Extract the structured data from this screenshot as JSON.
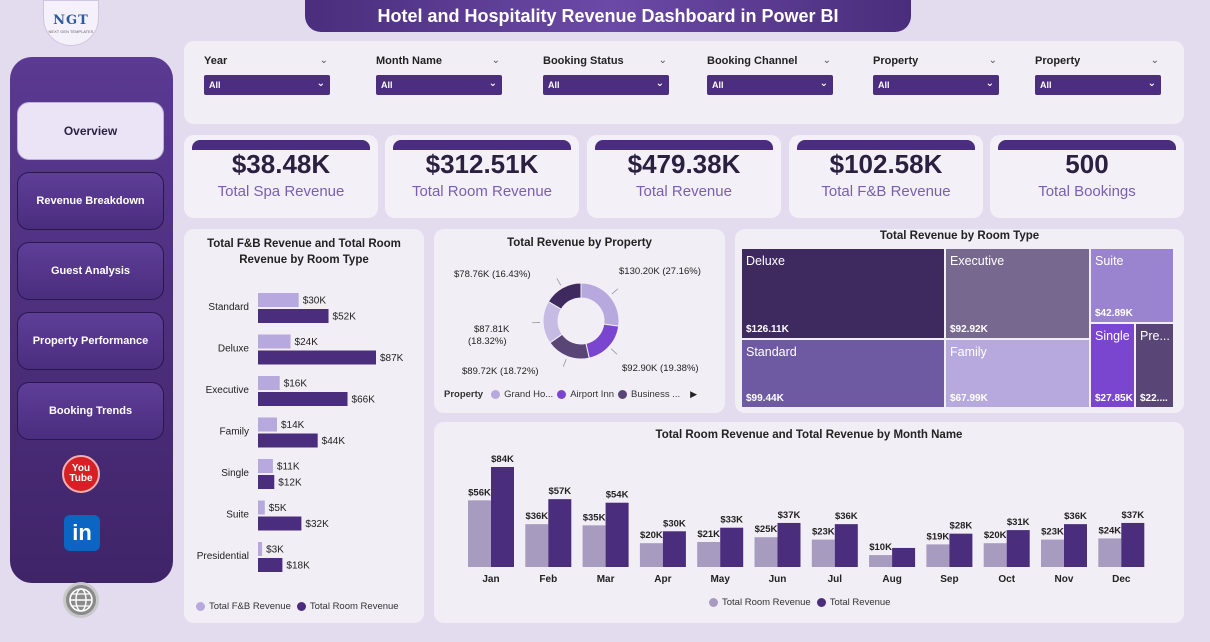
{
  "logo": {
    "text": "NGT",
    "tagline": "NEXT GEN TEMPLATES"
  },
  "title": "Hotel and Hospitality Revenue Dashboard in Power BI",
  "nav": [
    {
      "label": "Overview",
      "active": true
    },
    {
      "label": "Revenue Breakdown",
      "active": false
    },
    {
      "label": "Guest Analysis",
      "active": false
    },
    {
      "label": "Property Performance",
      "active": false
    },
    {
      "label": "Booking Trends",
      "active": false
    }
  ],
  "social": {
    "youtube_top": "You",
    "youtube_bottom": "Tube",
    "linkedin": "in",
    "icons": [
      "youtube-icon",
      "linkedin-icon",
      "globe-icon"
    ]
  },
  "filters": [
    {
      "label": "Year",
      "value": "All"
    },
    {
      "label": "Month Name",
      "value": "All"
    },
    {
      "label": "Booking Status",
      "value": "All"
    },
    {
      "label": "Booking Channel",
      "value": "All"
    },
    {
      "label": "Property",
      "value": "All"
    },
    {
      "label": "Property",
      "value": "All"
    }
  ],
  "kpis": [
    {
      "value": "$38.48K",
      "label": "Total Spa Revenue"
    },
    {
      "value": "$312.51K",
      "label": "Total Room Revenue"
    },
    {
      "value": "$479.38K",
      "label": "Total Revenue"
    },
    {
      "value": "$102.58K",
      "label": "Total F&B Revenue"
    },
    {
      "value": "500",
      "label": "Total Bookings"
    }
  ],
  "colors": {
    "primary": "#4a2d7c",
    "light": "#b7a8dd",
    "mid": "#5a4577",
    "accent": "#7b46cf",
    "bg": "#e3dcef"
  },
  "chart_data": [
    {
      "type": "bar",
      "orientation": "horizontal",
      "title": "Total F&B Revenue and Total Room Revenue by Room Type",
      "categories": [
        "Standard",
        "Deluxe",
        "Executive",
        "Family",
        "Single",
        "Suite",
        "Presidential"
      ],
      "series": [
        {
          "name": "Total F&B Revenue",
          "values": [
            30,
            24,
            16,
            14,
            11,
            5,
            3
          ],
          "labels": [
            "$30K",
            "$24K",
            "$16K",
            "$14K",
            "$11K",
            "$5K",
            "$3K"
          ],
          "color": "#b7a8dd"
        },
        {
          "name": "Total Room Revenue",
          "values": [
            52,
            87,
            66,
            44,
            12,
            32,
            18
          ],
          "labels": [
            "$52K",
            "$87K",
            "$66K",
            "$44K",
            "$12K",
            "$32K",
            "$18K"
          ],
          "color": "#4a2d7c"
        }
      ],
      "xlim": [
        0,
        87
      ],
      "legend": "bottom"
    },
    {
      "type": "pie",
      "donut": true,
      "title": "Total Revenue by Property",
      "legend_title": "Property",
      "legend_items": [
        "Grand Ho...",
        "Airport Inn",
        "Business ..."
      ],
      "slices": [
        {
          "label": "$130.20K (27.16%)",
          "value": 27.16,
          "color": "#b7a8dd"
        },
        {
          "label": "$92.90K (19.38%)",
          "value": 19.38,
          "color": "#7b46cf"
        },
        {
          "label": "$89.72K (18.72%)",
          "value": 18.72,
          "color": "#5a4577"
        },
        {
          "label": "$87.81K (18.32%)",
          "value": 18.32,
          "color": "#c6bce3"
        },
        {
          "label": "$78.76K (16.43%)",
          "value": 16.43,
          "color": "#3e2a5f"
        }
      ]
    },
    {
      "type": "treemap",
      "title": "Total Revenue by Room Type",
      "items": [
        {
          "name": "Deluxe",
          "value": 126.11,
          "label": "$126.11K",
          "color": "#3e2a5f"
        },
        {
          "name": "Executive",
          "value": 92.92,
          "label": "$92.92K",
          "color": "#76688f"
        },
        {
          "name": "Suite",
          "value": 42.89,
          "label": "$42.89K",
          "color": "#9b84cf"
        },
        {
          "name": "Standard",
          "value": 99.44,
          "label": "$99.44K",
          "color": "#6e5aa3"
        },
        {
          "name": "Family",
          "value": 67.99,
          "label": "$67.99K",
          "color": "#b7a8dd"
        },
        {
          "name": "Single",
          "value": 27.85,
          "label": "$27.85K",
          "color": "#7b46cf"
        },
        {
          "name": "Pre...",
          "value": 22.0,
          "label": "$22....",
          "color": "#5a4577"
        }
      ]
    },
    {
      "type": "bar",
      "title": "Total Room Revenue and Total Revenue by Month Name",
      "categories": [
        "Jan",
        "Feb",
        "Mar",
        "Apr",
        "May",
        "Jun",
        "Jul",
        "Aug",
        "Sep",
        "Oct",
        "Nov",
        "Dec"
      ],
      "series": [
        {
          "name": "Total Room Revenue",
          "values": [
            56,
            36,
            35,
            20,
            21,
            25,
            23,
            10,
            19,
            20,
            23,
            24
          ],
          "labels": [
            "$56K",
            "$36K",
            "$35K",
            "$20K",
            "$21K",
            "$25K",
            "$23K",
            "$10K",
            "$19K",
            "$20K",
            "$23K",
            "$24K"
          ],
          "color": "#a79cc0"
        },
        {
          "name": "Total Revenue",
          "values": [
            84,
            57,
            54,
            30,
            33,
            37,
            36,
            16,
            28,
            31,
            36,
            37
          ],
          "labels": [
            "$84K",
            "$57K",
            "$54K",
            "$30K",
            "$33K",
            "$37K",
            "$36K",
            "",
            "$28K",
            "$31K",
            "$36K",
            "$37K"
          ],
          "color": "#4a2d7c"
        }
      ],
      "ylim": [
        0,
        84
      ],
      "legend": "bottom"
    }
  ]
}
